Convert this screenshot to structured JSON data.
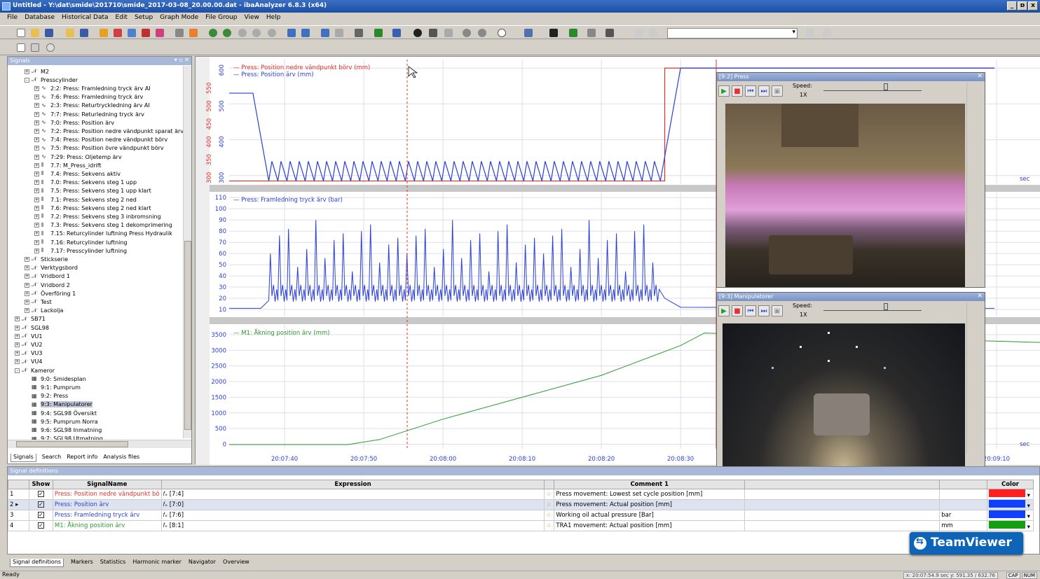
{
  "window": {
    "title": "Untitled - Y:\\dat\\smide\\201710\\smide_2017-03-08_20.00.00.dat - ibaAnalyzer 6.8.3 (x64)",
    "buttons": [
      "_",
      "ɒ",
      "x"
    ]
  },
  "menu": [
    "File",
    "Database",
    "Historical Data",
    "Edit",
    "Setup",
    "Graph Mode",
    "File Group",
    "View",
    "Help"
  ],
  "signals_panel": {
    "title": "Signals",
    "controls": "▾ ▫ ✕",
    "tree": [
      {
        "label": "M2",
        "level": 2,
        "exp": "+",
        "icon": "𝒩"
      },
      {
        "label": "Presscylinder",
        "level": 2,
        "exp": "-",
        "icon": "𝒩"
      },
      {
        "label": "2:2: Press: Framledning tryck ärv AI",
        "level": 3,
        "exp": "+",
        "icon": "∿"
      },
      {
        "label": "7:6: Press: Framledning tryck ärv",
        "level": 3,
        "exp": "+",
        "icon": "∿"
      },
      {
        "label": "2:3: Press: Returtryckledning ärv AI",
        "level": 3,
        "exp": "+",
        "icon": "∿"
      },
      {
        "label": "7:7: Press: Returledning tryck ärv",
        "level": 3,
        "exp": "+",
        "icon": "∿"
      },
      {
        "label": "7:0: Press: Position ärv",
        "level": 3,
        "exp": "+",
        "icon": "∿"
      },
      {
        "label": "7:2: Press: Position nedre vändpunkt sparat ärv",
        "level": 3,
        "exp": "+",
        "icon": "∿"
      },
      {
        "label": "7:4: Press: Position nedre vändpunkt börv",
        "level": 3,
        "exp": "+",
        "icon": "∿"
      },
      {
        "label": "7:5: Press: Position övre vändpunkt börv",
        "level": 3,
        "exp": "+",
        "icon": "∿"
      },
      {
        "label": "7:29: Press: Oljetemp ärv",
        "level": 3,
        "exp": "+",
        "icon": "∿"
      },
      {
        "label": "7.7: M_Press_idrift",
        "level": 3,
        "exp": "+",
        "icon": "⫴"
      },
      {
        "label": "7.4: Press: Sekvens aktiv",
        "level": 3,
        "exp": "+",
        "icon": "⫴"
      },
      {
        "label": "7.0: Press: Sekvens steg 1 upp",
        "level": 3,
        "exp": "+",
        "icon": "⫴"
      },
      {
        "label": "7.5: Press: Sekvens steg 1 upp klart",
        "level": 3,
        "exp": "+",
        "icon": "⫴"
      },
      {
        "label": "7.1: Press: Sekvens steg 2 ned",
        "level": 3,
        "exp": "+",
        "icon": "⫴"
      },
      {
        "label": "7.6: Press: Sekvens steg 2 ned klart",
        "level": 3,
        "exp": "+",
        "icon": "⫴"
      },
      {
        "label": "7.2: Press: Sekvens steg 3 inbromsning",
        "level": 3,
        "exp": "+",
        "icon": "⫴"
      },
      {
        "label": "7.3: Press: Sekvens steg 1 dekomprimering",
        "level": 3,
        "exp": "+",
        "icon": "⫴"
      },
      {
        "label": "7.15: Returcylinder luftning Press Hydraulik",
        "level": 3,
        "exp": "+",
        "icon": "⫴"
      },
      {
        "label": "7.16: Returcylinder luftning",
        "level": 3,
        "exp": "+",
        "icon": "⫴"
      },
      {
        "label": "7.17: Presscylinder luftning",
        "level": 3,
        "exp": "+",
        "icon": "⫴"
      },
      {
        "label": "Stickserie",
        "level": 2,
        "exp": "+",
        "icon": "𝒩"
      },
      {
        "label": "Verktygsbord",
        "level": 2,
        "exp": "+",
        "icon": "𝒩"
      },
      {
        "label": "Vridbord 1",
        "level": 2,
        "exp": "+",
        "icon": "𝒩"
      },
      {
        "label": "Vridbord 2",
        "level": 2,
        "exp": "+",
        "icon": "𝒩"
      },
      {
        "label": "Överföring 1",
        "level": 2,
        "exp": "+",
        "icon": "𝒩"
      },
      {
        "label": "Test",
        "level": 2,
        "exp": "+",
        "icon": "𝒩"
      },
      {
        "label": "Lackolja",
        "level": 2,
        "exp": "+",
        "icon": "𝒩"
      },
      {
        "label": "SB71",
        "level": 1,
        "exp": "+",
        "icon": "𝒩"
      },
      {
        "label": "SGL98",
        "level": 1,
        "exp": "+",
        "icon": "𝒩"
      },
      {
        "label": "VU1",
        "level": 1,
        "exp": "+",
        "icon": "𝒩"
      },
      {
        "label": "VU2",
        "level": 1,
        "exp": "+",
        "icon": "𝒩"
      },
      {
        "label": "VU3",
        "level": 1,
        "exp": "+",
        "icon": "𝒩"
      },
      {
        "label": "VU4",
        "level": 1,
        "exp": "+",
        "icon": "𝒩"
      },
      {
        "label": "Kameror",
        "level": 1,
        "exp": "-",
        "icon": "𝒩"
      },
      {
        "label": "9:0: Smidesplan",
        "level": 2,
        "exp": "",
        "icon": "▦"
      },
      {
        "label": "9:1: Pumprum",
        "level": 2,
        "exp": "",
        "icon": "▦"
      },
      {
        "label": "9:2: Press",
        "level": 2,
        "exp": "",
        "icon": "▦"
      },
      {
        "label": "9:3: Manipulatorer",
        "level": 2,
        "exp": "",
        "icon": "▦",
        "selected": true
      },
      {
        "label": "9:4: SGL98 Översikt",
        "level": 2,
        "exp": "",
        "icon": "▦"
      },
      {
        "label": "9:5: Pumprum Norra",
        "level": 2,
        "exp": "",
        "icon": "▦"
      },
      {
        "label": "9:6: SGL98 Inmatning",
        "level": 2,
        "exp": "",
        "icon": "▦"
      },
      {
        "label": "9:7: SGL98 Utmatning",
        "level": 2,
        "exp": "",
        "icon": "▦"
      }
    ],
    "tabs": [
      "Signals",
      "Search",
      "Report info",
      "Analysis files"
    ]
  },
  "graph": {
    "legend1": [
      {
        "text": "Press: Position nedre vändpunkt börv (mm)",
        "color": "#e8302a"
      },
      {
        "text": "Press: Position ärv (mm)",
        "color": "#2a3fd8"
      }
    ],
    "legend2": [
      {
        "text": "Press: Framledning tryck ärv (bar)",
        "color": "#2a3fd8"
      }
    ],
    "legend3": [
      {
        "text": "M1: Åkning position ärv (mm)",
        "color": "#2a9a2a"
      }
    ],
    "axis1_left": [
      "600",
      "500",
      "400",
      "300"
    ],
    "axis1_red": [
      "550",
      "500",
      "450",
      "400",
      "350",
      "300"
    ],
    "axis2": [
      "110",
      "100",
      "90",
      "80",
      "70",
      "60",
      "50",
      "40",
      "30",
      "20",
      "10"
    ],
    "axis3": [
      "3500",
      "3000",
      "2500",
      "2000",
      "1500",
      "1000",
      "500",
      "0"
    ],
    "time_ticks": [
      "20:07:40",
      "20:07:50",
      "20:08:00",
      "20:08:10",
      "20:08:20",
      "20:08:30",
      "20:09:10"
    ],
    "sec_label": "sec"
  },
  "chart_data": [
    {
      "type": "line",
      "xlabel": "",
      "ylabel": "",
      "series": [
        {
          "name": "Press: Position nedre vändpunkt börv (mm)",
          "color": "#e8302a",
          "x": [
            "20:07:33",
            "20:08:28",
            "20:08:28.5",
            "20:08:39"
          ],
          "values": [
            285,
            285,
            600,
            600
          ]
        },
        {
          "name": "Press: Position ärv (mm)",
          "color": "#2a3fd8",
          "x": [
            "20:07:33",
            "20:07:36",
            "20:07:38",
            "20:08:27",
            "20:08:30",
            "20:08:39"
          ],
          "values": [
            530,
            530,
            340,
            320,
            600,
            600
          ],
          "note_values": "oscillating ~300-340 between 20:07:38 and 20:08:27"
        }
      ],
      "ylim": [
        280,
        620
      ]
    },
    {
      "type": "line",
      "series": [
        {
          "name": "Press: Framledning tryck ärv (bar)",
          "color": "#2a3fd8",
          "x": [
            "20:07:33",
            "20:07:37",
            "20:07:38",
            "20:08:27",
            "20:08:30",
            "20:08:39"
          ],
          "values": [
            11,
            11,
            20,
            25,
            12,
            11
          ],
          "peaks": [
            60,
            80,
            90
          ]
        }
      ],
      "ylim": [
        5,
        112
      ]
    },
    {
      "type": "line",
      "series": [
        {
          "name": "M1: Åkning position ärv (mm)",
          "color": "#2a9a2a",
          "x": [
            "20:07:33",
            "20:07:48",
            "20:07:52",
            "20:08:00",
            "20:08:10",
            "20:08:20",
            "20:08:30",
            "20:08:33"
          ],
          "values": [
            -10,
            -10,
            150,
            800,
            1500,
            2200,
            3150,
            3550
          ]
        }
      ],
      "ylim": [
        -100,
        3700
      ]
    }
  ],
  "video1": {
    "title": "[9:2] Press",
    "speed_label": "Speed:",
    "speed_value": "1X"
  },
  "video2": {
    "title": "[9:3] Manipulatorer",
    "speed_label": "Speed:",
    "speed_value": "1X"
  },
  "sigdef": {
    "title": "Signal definitions",
    "headers": [
      "",
      "Show",
      "SignalName",
      "Expression",
      "",
      "Comment 1",
      "",
      "",
      "Color"
    ],
    "rows": [
      {
        "num": "1",
        "name": "Press: Position nedre vändpunkt bö",
        "color": "#e8302a",
        "expr": "[7:4]",
        "comment": "Press movement: Lowest set cycle position [mm]",
        "unit": "",
        "swatch": "#ff2020"
      },
      {
        "num": "2 ▸",
        "name": "Press: Position ärv",
        "color": "#2a3fd8",
        "expr": "[7:0]",
        "comment": "Press movement: Actual position [mm]",
        "unit": "",
        "swatch": "#1040ff"
      },
      {
        "num": "3",
        "name": "Press: Framledning tryck ärv",
        "color": "#2a3fd8",
        "expr": "[7:6]",
        "comment": "Working oil actual pressure [Bar]",
        "unit": "bar",
        "swatch": "#1040ff"
      },
      {
        "num": "4",
        "name": "M1: Åkning position ärv",
        "color": "#2a9a2a",
        "expr": "[8:1]",
        "comment": "TRA1 movement: Actual position [mm]",
        "unit": "mm",
        "swatch": "#10a010"
      }
    ],
    "bottom_tabs": [
      "Signal definitions",
      "Markers",
      "Statistics",
      "Harmonic marker",
      "Navigator",
      "Overview"
    ]
  },
  "status": {
    "text": "Ready",
    "coords": "x: 20:07:54.9 sec y: 591.35 / 632.76",
    "caps": [
      "CAP",
      "NUM"
    ]
  },
  "teamviewer": "TeamViewer"
}
